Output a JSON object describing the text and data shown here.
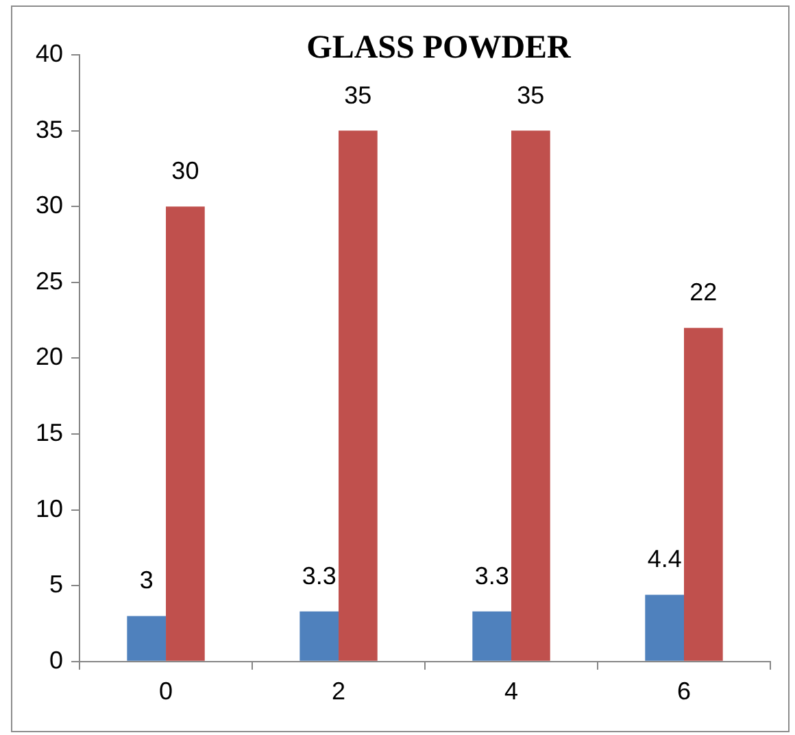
{
  "chart_data": {
    "type": "bar",
    "title": "GLASS POWDER",
    "categories": [
      "0",
      "2",
      "4",
      "6"
    ],
    "series": [
      {
        "color": "#4f81bd",
        "values": [
          3,
          3.3,
          3.3,
          4.4
        ]
      },
      {
        "color": "#c0504d",
        "values": [
          30,
          35,
          35,
          22
        ]
      }
    ],
    "ylim": [
      0,
      40
    ],
    "yticks": [
      0,
      5,
      10,
      15,
      20,
      25,
      30,
      35,
      40
    ],
    "data_labels": true
  }
}
